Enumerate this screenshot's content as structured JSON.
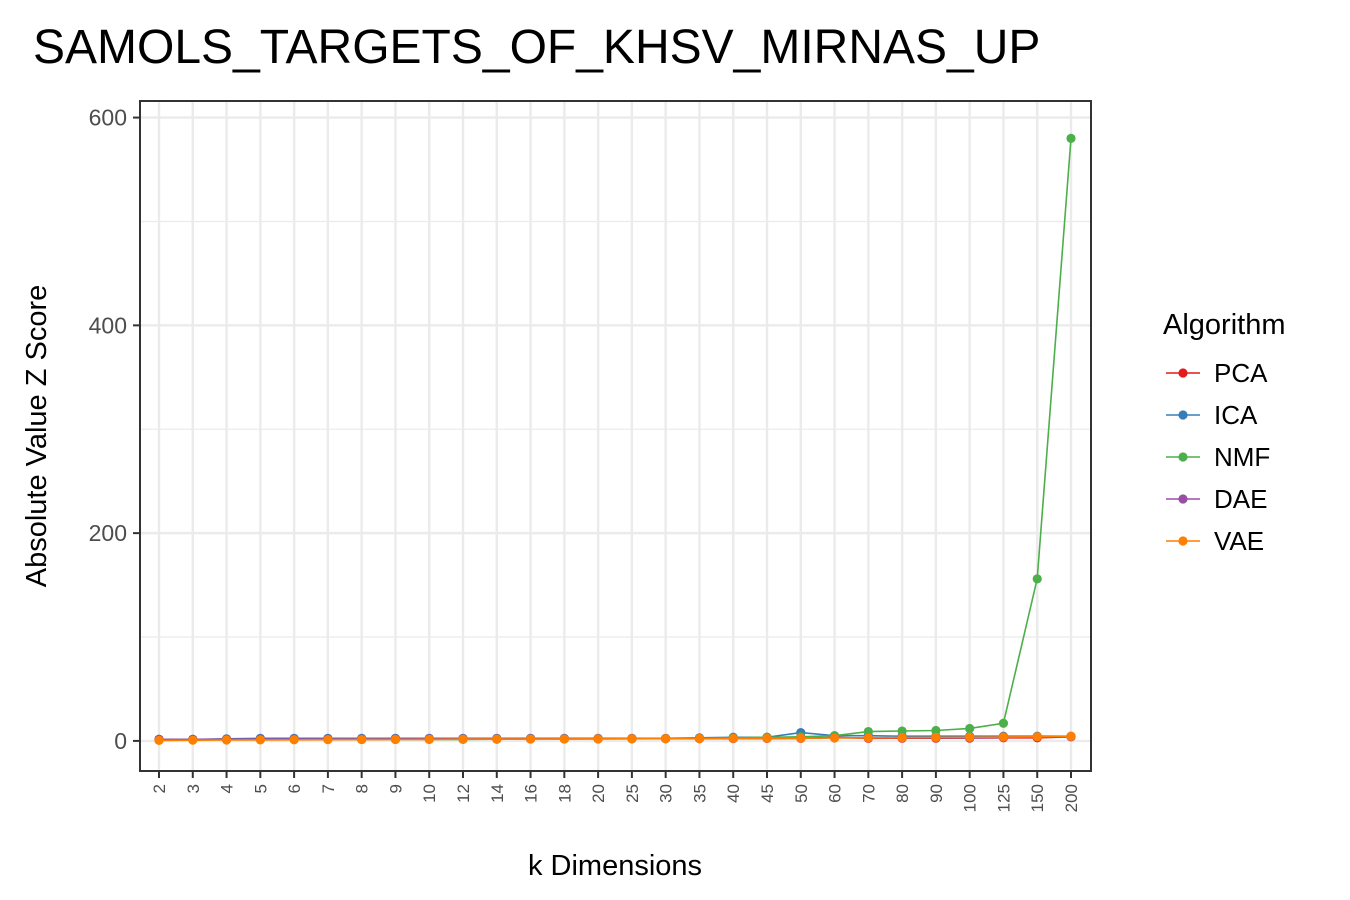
{
  "chart_data": {
    "type": "line",
    "title": "SAMOLS_TARGETS_OF_KHSV_MIRNAS_UP",
    "xlabel": "k Dimensions",
    "ylabel": "Absolute Value Z Score",
    "x": [
      "2",
      "3",
      "4",
      "5",
      "6",
      "7",
      "8",
      "9",
      "10",
      "12",
      "14",
      "16",
      "18",
      "20",
      "25",
      "30",
      "35",
      "40",
      "45",
      "50",
      "60",
      "70",
      "80",
      "90",
      "100",
      "125",
      "150",
      "200"
    ],
    "ylim": [
      -28,
      615
    ],
    "yticks": [
      0,
      200,
      400,
      600
    ],
    "grid": true,
    "legend": {
      "title": "Algorithm",
      "position": "right"
    },
    "series": [
      {
        "name": "PCA",
        "color": "#e41a1c",
        "values": [
          1.5,
          1.5,
          1.5,
          1.6,
          1.6,
          1.7,
          1.7,
          1.8,
          1.8,
          1.9,
          1.9,
          2.0,
          2.0,
          2.1,
          2.1,
          2.2,
          2.2,
          2.3,
          2.4,
          2.5,
          3.5,
          2.5,
          2.6,
          2.6,
          2.7,
          3.0,
          3.0,
          4.0
        ]
      },
      {
        "name": "ICA",
        "color": "#377eb8",
        "values": [
          1.5,
          1.5,
          2.0,
          2.5,
          2.5,
          2.5,
          2.5,
          2.5,
          2.5,
          2.5,
          2.5,
          2.5,
          2.5,
          2.5,
          2.5,
          2.5,
          3.0,
          3.5,
          3.5,
          8.0,
          5.0,
          5.0,
          4.5,
          4.5,
          4.5,
          4.5,
          4.5,
          4.5
        ]
      },
      {
        "name": "NMF",
        "color": "#4daf4a",
        "values": [
          1.0,
          1.0,
          1.2,
          1.5,
          1.5,
          1.5,
          1.5,
          1.5,
          1.5,
          1.5,
          1.6,
          1.8,
          1.8,
          1.9,
          2.0,
          2.2,
          2.5,
          3.0,
          3.5,
          4.0,
          5.0,
          9.0,
          9.5,
          10.0,
          12.0,
          17.0,
          156.0,
          580.0
        ]
      },
      {
        "name": "DAE",
        "color": "#984ea3",
        "values": [
          1.5,
          1.5,
          1.6,
          1.7,
          1.7,
          1.8,
          1.8,
          1.9,
          2.0,
          2.0,
          2.0,
          2.1,
          2.1,
          2.1,
          2.2,
          2.2,
          2.3,
          2.3,
          2.4,
          2.5,
          3.0,
          3.0,
          3.0,
          3.0,
          3.0,
          3.5,
          4.0,
          4.0
        ]
      },
      {
        "name": "VAE",
        "color": "#ff7f00",
        "values": [
          0.5,
          0.7,
          0.9,
          1.0,
          1.1,
          1.2,
          1.3,
          1.4,
          1.5,
          1.6,
          1.7,
          1.8,
          1.9,
          2.0,
          2.1,
          2.2,
          2.3,
          2.4,
          2.5,
          2.6,
          2.8,
          3.0,
          3.2,
          3.4,
          3.5,
          3.8,
          4.0,
          4.5
        ]
      }
    ]
  }
}
